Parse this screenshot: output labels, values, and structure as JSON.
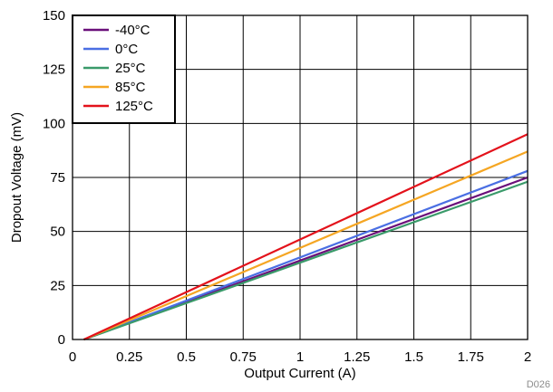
{
  "chart_data": {
    "type": "line",
    "title": "",
    "xlabel": "Output Current (A)",
    "ylabel": "Dropout Voltage (mV)",
    "xlim": [
      0,
      2
    ],
    "ylim": [
      0,
      150
    ],
    "x_ticks": [
      "0",
      "0.25",
      "0.5",
      "0.75",
      "1",
      "1.25",
      "1.5",
      "1.75",
      "2"
    ],
    "y_ticks": [
      "0",
      "25",
      "50",
      "75",
      "100",
      "125",
      "150"
    ],
    "grid": true,
    "legend_position": "top-left",
    "series": [
      {
        "name": "-40°C",
        "color": "#6a0f7a",
        "x": [
          0.05,
          2.0
        ],
        "y": [
          0,
          75
        ]
      },
      {
        "name": "0°C",
        "color": "#4a6fe3",
        "x": [
          0.05,
          2.0
        ],
        "y": [
          0,
          78
        ]
      },
      {
        "name": "25°C",
        "color": "#3a9a6a",
        "x": [
          0.05,
          2.0
        ],
        "y": [
          0,
          73
        ]
      },
      {
        "name": "85°C",
        "color": "#f5a623",
        "x": [
          0.05,
          2.0
        ],
        "y": [
          0,
          87
        ]
      },
      {
        "name": "125°C",
        "color": "#e3121b",
        "x": [
          0.05,
          2.0
        ],
        "y": [
          0,
          95
        ]
      }
    ]
  },
  "figure_code": "D026"
}
